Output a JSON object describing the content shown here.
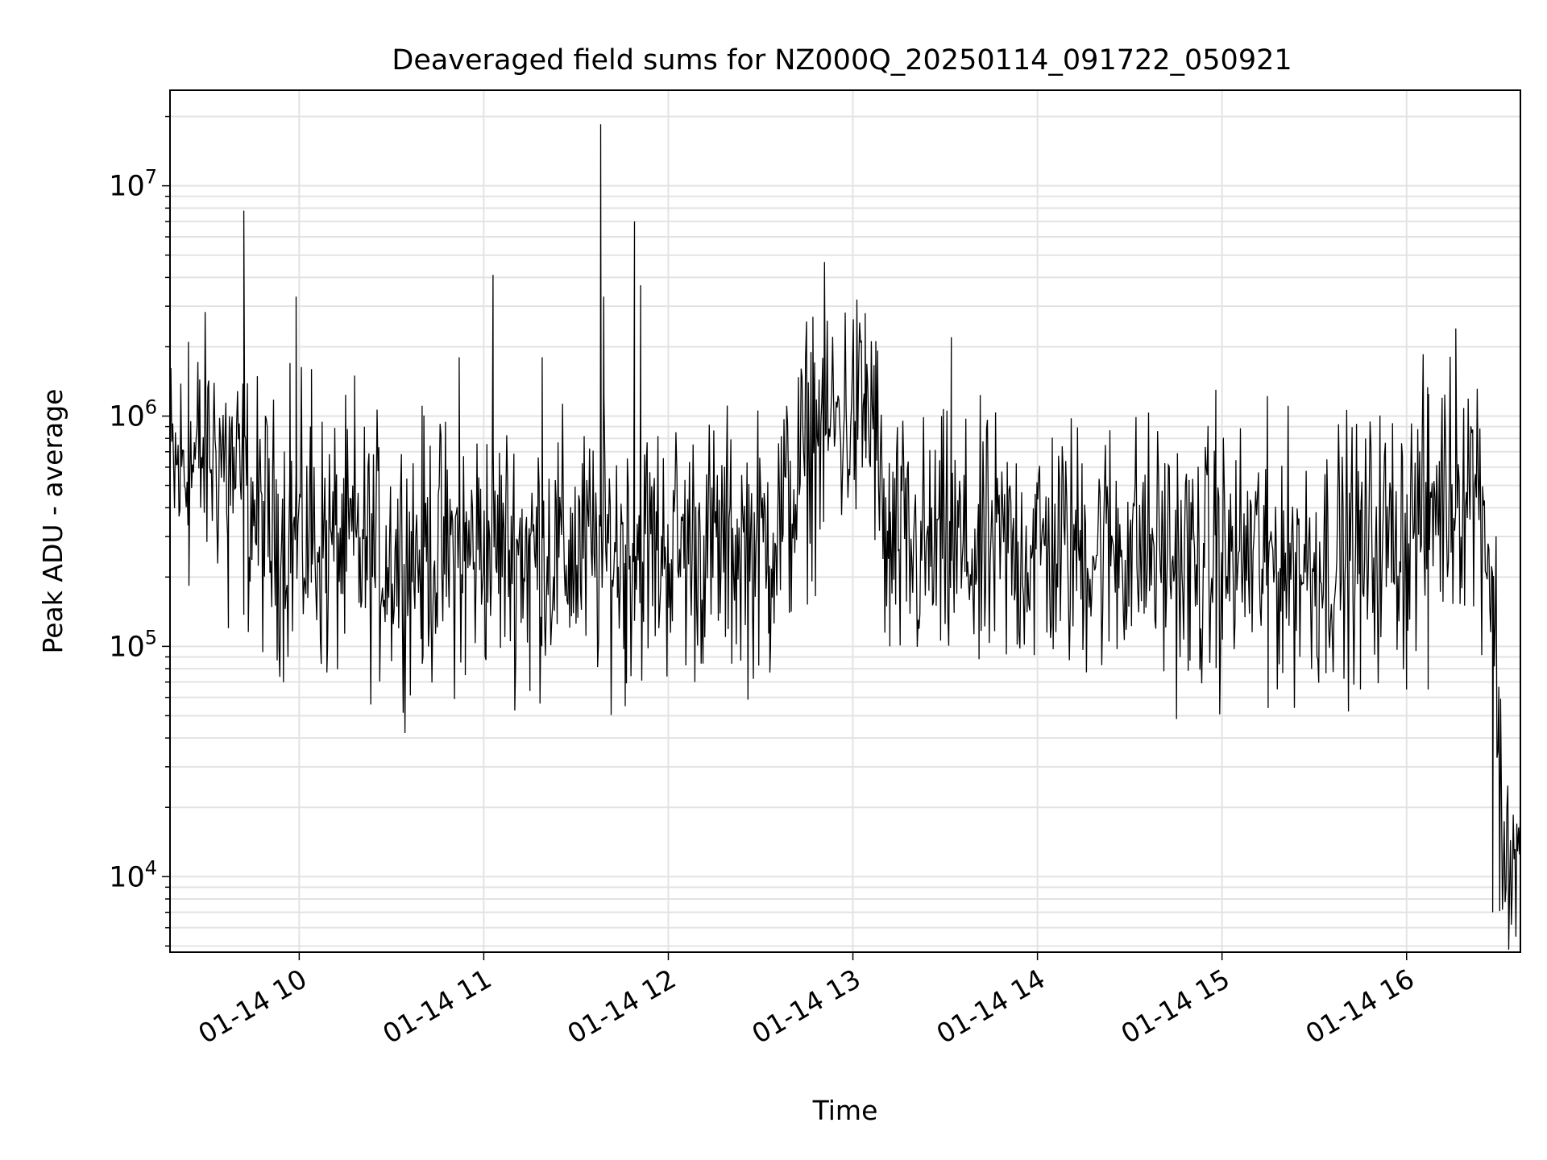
{
  "chart_data": {
    "type": "line",
    "title": "Deaveraged field sums for NZ000Q_20250114_091722_050921",
    "xlabel": "Time",
    "ylabel": "Peak ADU - average",
    "yscale": "log",
    "grid": true,
    "legend": "none",
    "x_range": [
      "2025-01-14T09:18",
      "2025-01-14T16:37"
    ],
    "ylim": [
      4700,
      26000000
    ],
    "x_ticks": [
      {
        "t": "2025-01-14T10:00",
        "label": "01-14 10"
      },
      {
        "t": "2025-01-14T11:00",
        "label": "01-14 11"
      },
      {
        "t": "2025-01-14T12:00",
        "label": "01-14 12"
      },
      {
        "t": "2025-01-14T13:00",
        "label": "01-14 13"
      },
      {
        "t": "2025-01-14T14:00",
        "label": "01-14 14"
      },
      {
        "t": "2025-01-14T15:00",
        "label": "01-14 15"
      },
      {
        "t": "2025-01-14T16:00",
        "label": "01-14 16"
      }
    ],
    "y_ticks": [
      {
        "value": 10000,
        "base": "10",
        "exp": "4"
      },
      {
        "value": 100000,
        "base": "10",
        "exp": "5"
      },
      {
        "value": 1000000,
        "base": "10",
        "exp": "6"
      },
      {
        "value": 10000000,
        "base": "10",
        "exp": "7"
      }
    ],
    "series": [
      {
        "color": "#000000",
        "x": [
          "2025-01-14T09:18",
          "2025-01-14T09:25",
          "2025-01-14T09:30",
          "2025-01-14T09:35",
          "2025-01-14T09:40",
          "2025-01-14T09:45",
          "2025-01-14T09:50",
          "2025-01-14T09:55",
          "2025-01-14T10:00",
          "2025-01-14T10:10",
          "2025-01-14T10:20",
          "2025-01-14T10:30",
          "2025-01-14T10:40",
          "2025-01-14T10:50",
          "2025-01-14T11:00",
          "2025-01-14T11:10",
          "2025-01-14T11:20",
          "2025-01-14T11:30",
          "2025-01-14T11:40",
          "2025-01-14T11:50",
          "2025-01-14T12:00",
          "2025-01-14T12:10",
          "2025-01-14T12:20",
          "2025-01-14T12:30",
          "2025-01-14T12:40",
          "2025-01-14T12:45",
          "2025-01-14T12:50",
          "2025-01-14T12:55",
          "2025-01-14T13:00",
          "2025-01-14T13:05",
          "2025-01-14T13:07",
          "2025-01-14T13:10",
          "2025-01-14T13:20",
          "2025-01-14T13:30",
          "2025-01-14T13:40",
          "2025-01-14T13:50",
          "2025-01-14T14:00",
          "2025-01-14T14:10",
          "2025-01-14T14:20",
          "2025-01-14T14:30",
          "2025-01-14T14:40",
          "2025-01-14T14:50",
          "2025-01-14T15:00",
          "2025-01-14T15:10",
          "2025-01-14T15:20",
          "2025-01-14T15:30",
          "2025-01-14T15:40",
          "2025-01-14T15:50",
          "2025-01-14T16:00",
          "2025-01-14T16:10",
          "2025-01-14T16:20",
          "2025-01-14T16:24",
          "2025-01-14T16:27",
          "2025-01-14T16:29",
          "2025-01-14T16:30",
          "2025-01-14T16:31",
          "2025-01-14T16:33",
          "2025-01-14T16:35",
          "2025-01-14T16:37"
        ],
        "y": [
          550000,
          600000,
          700000,
          700000,
          500000,
          400000,
          320000,
          300000,
          300000,
          280000,
          260000,
          250000,
          260000,
          250000,
          280000,
          270000,
          260000,
          250000,
          260000,
          270000,
          270000,
          270000,
          270000,
          270000,
          420000,
          700000,
          900000,
          950000,
          1000000,
          1000000,
          1000000,
          280000,
          250000,
          260000,
          250000,
          260000,
          270000,
          270000,
          270000,
          280000,
          260000,
          220000,
          230000,
          250000,
          240000,
          230000,
          260000,
          280000,
          320000,
          450000,
          550000,
          500000,
          250000,
          120000,
          30000,
          14000,
          13000,
          12000,
          9000
        ]
      }
    ],
    "spikes": [
      {
        "x": "2025-01-14T09:24",
        "y": 2100000
      },
      {
        "x": "2025-01-14T09:42",
        "y": 7800000
      },
      {
        "x": "2025-01-14T09:57",
        "y": 1700000
      },
      {
        "x": "2025-01-14T09:59",
        "y": 3300000
      },
      {
        "x": "2025-01-14T10:04",
        "y": 1600000
      },
      {
        "x": "2025-01-14T10:18",
        "y": 1500000
      },
      {
        "x": "2025-01-14T10:52",
        "y": 1800000
      },
      {
        "x": "2025-01-14T11:03",
        "y": 4100000
      },
      {
        "x": "2025-01-14T11:19",
        "y": 1800000
      },
      {
        "x": "2025-01-14T11:38",
        "y": 18500000
      },
      {
        "x": "2025-01-14T11:39",
        "y": 3300000
      },
      {
        "x": "2025-01-14T11:49",
        "y": 7000000
      },
      {
        "x": "2025-01-14T11:51",
        "y": 3700000
      },
      {
        "x": "2025-01-14T12:47",
        "y": 2700000
      },
      {
        "x": "2025-01-14T13:04",
        "y": 2800000
      },
      {
        "x": "2025-01-14T13:32",
        "y": 2200000
      },
      {
        "x": "2025-01-14T14:58",
        "y": 1300000
      },
      {
        "x": "2025-01-14T16:16",
        "y": 2400000
      }
    ],
    "dips": [
      {
        "x": "2025-01-14T09:37",
        "y": 120000
      },
      {
        "x": "2025-01-14T10:09",
        "y": 77000
      },
      {
        "x": "2025-01-14T10:40",
        "y": 84000
      },
      {
        "x": "2025-01-14T10:54",
        "y": 75000
      },
      {
        "x": "2025-01-14T11:15",
        "y": 64000
      },
      {
        "x": "2025-01-14T11:46",
        "y": 55000
      },
      {
        "x": "2025-01-14T12:33",
        "y": 77000
      },
      {
        "x": "2025-01-14T13:12",
        "y": 100000
      },
      {
        "x": "2025-01-14T13:41",
        "y": 88000
      },
      {
        "x": "2025-01-14T15:15",
        "y": 54000
      },
      {
        "x": "2025-01-14T15:45",
        "y": 65000
      },
      {
        "x": "2025-01-14T16:00",
        "y": 65000
      },
      {
        "x": "2025-01-14T16:07",
        "y": 65000
      },
      {
        "x": "2025-01-14T16:28",
        "y": 7000
      },
      {
        "x": "2025-01-14T16:37",
        "y": 7200
      }
    ]
  }
}
